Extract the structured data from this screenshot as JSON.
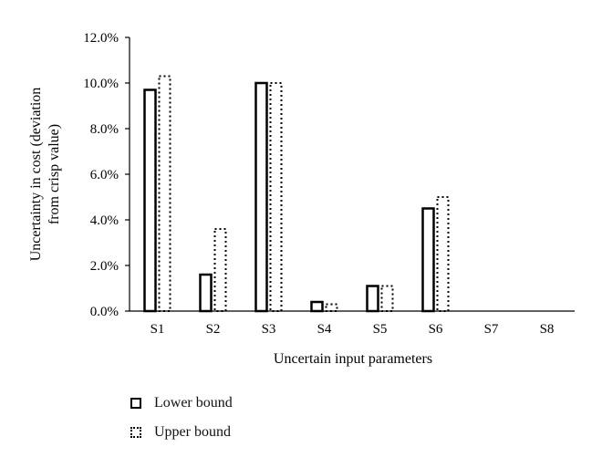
{
  "chart_data": {
    "type": "bar",
    "title": "",
    "xlabel": "Uncertain input parameters",
    "ylabel": "Uncertainty in cost (deviation from crisp value)",
    "ylabel_lines": [
      "Uncertainty in cost (deviation",
      "from crisp value)"
    ],
    "categories": [
      "S1",
      "S2",
      "S3",
      "S4",
      "S5",
      "S6",
      "S7",
      "S8"
    ],
    "series": [
      {
        "name": "Lower bound",
        "style": "solid",
        "values": [
          9.7,
          1.6,
          10.0,
          0.4,
          1.1,
          4.5,
          0.0,
          0.0
        ]
      },
      {
        "name": "Upper bound",
        "style": "dotted",
        "values": [
          10.3,
          3.6,
          10.0,
          0.3,
          1.1,
          5.0,
          0.0,
          0.0
        ]
      }
    ],
    "ylim": [
      0,
      12
    ],
    "yticks": [
      "0.0%",
      "2.0%",
      "4.0%",
      "6.0%",
      "8.0%",
      "10.0%",
      "12.0%"
    ],
    "ytick_values": [
      0,
      2,
      4,
      6,
      8,
      10,
      12
    ],
    "grid": false,
    "legend_position": "bottom-left"
  },
  "legend": {
    "lower_label": "Lower bound",
    "upper_label": "Upper bound"
  }
}
